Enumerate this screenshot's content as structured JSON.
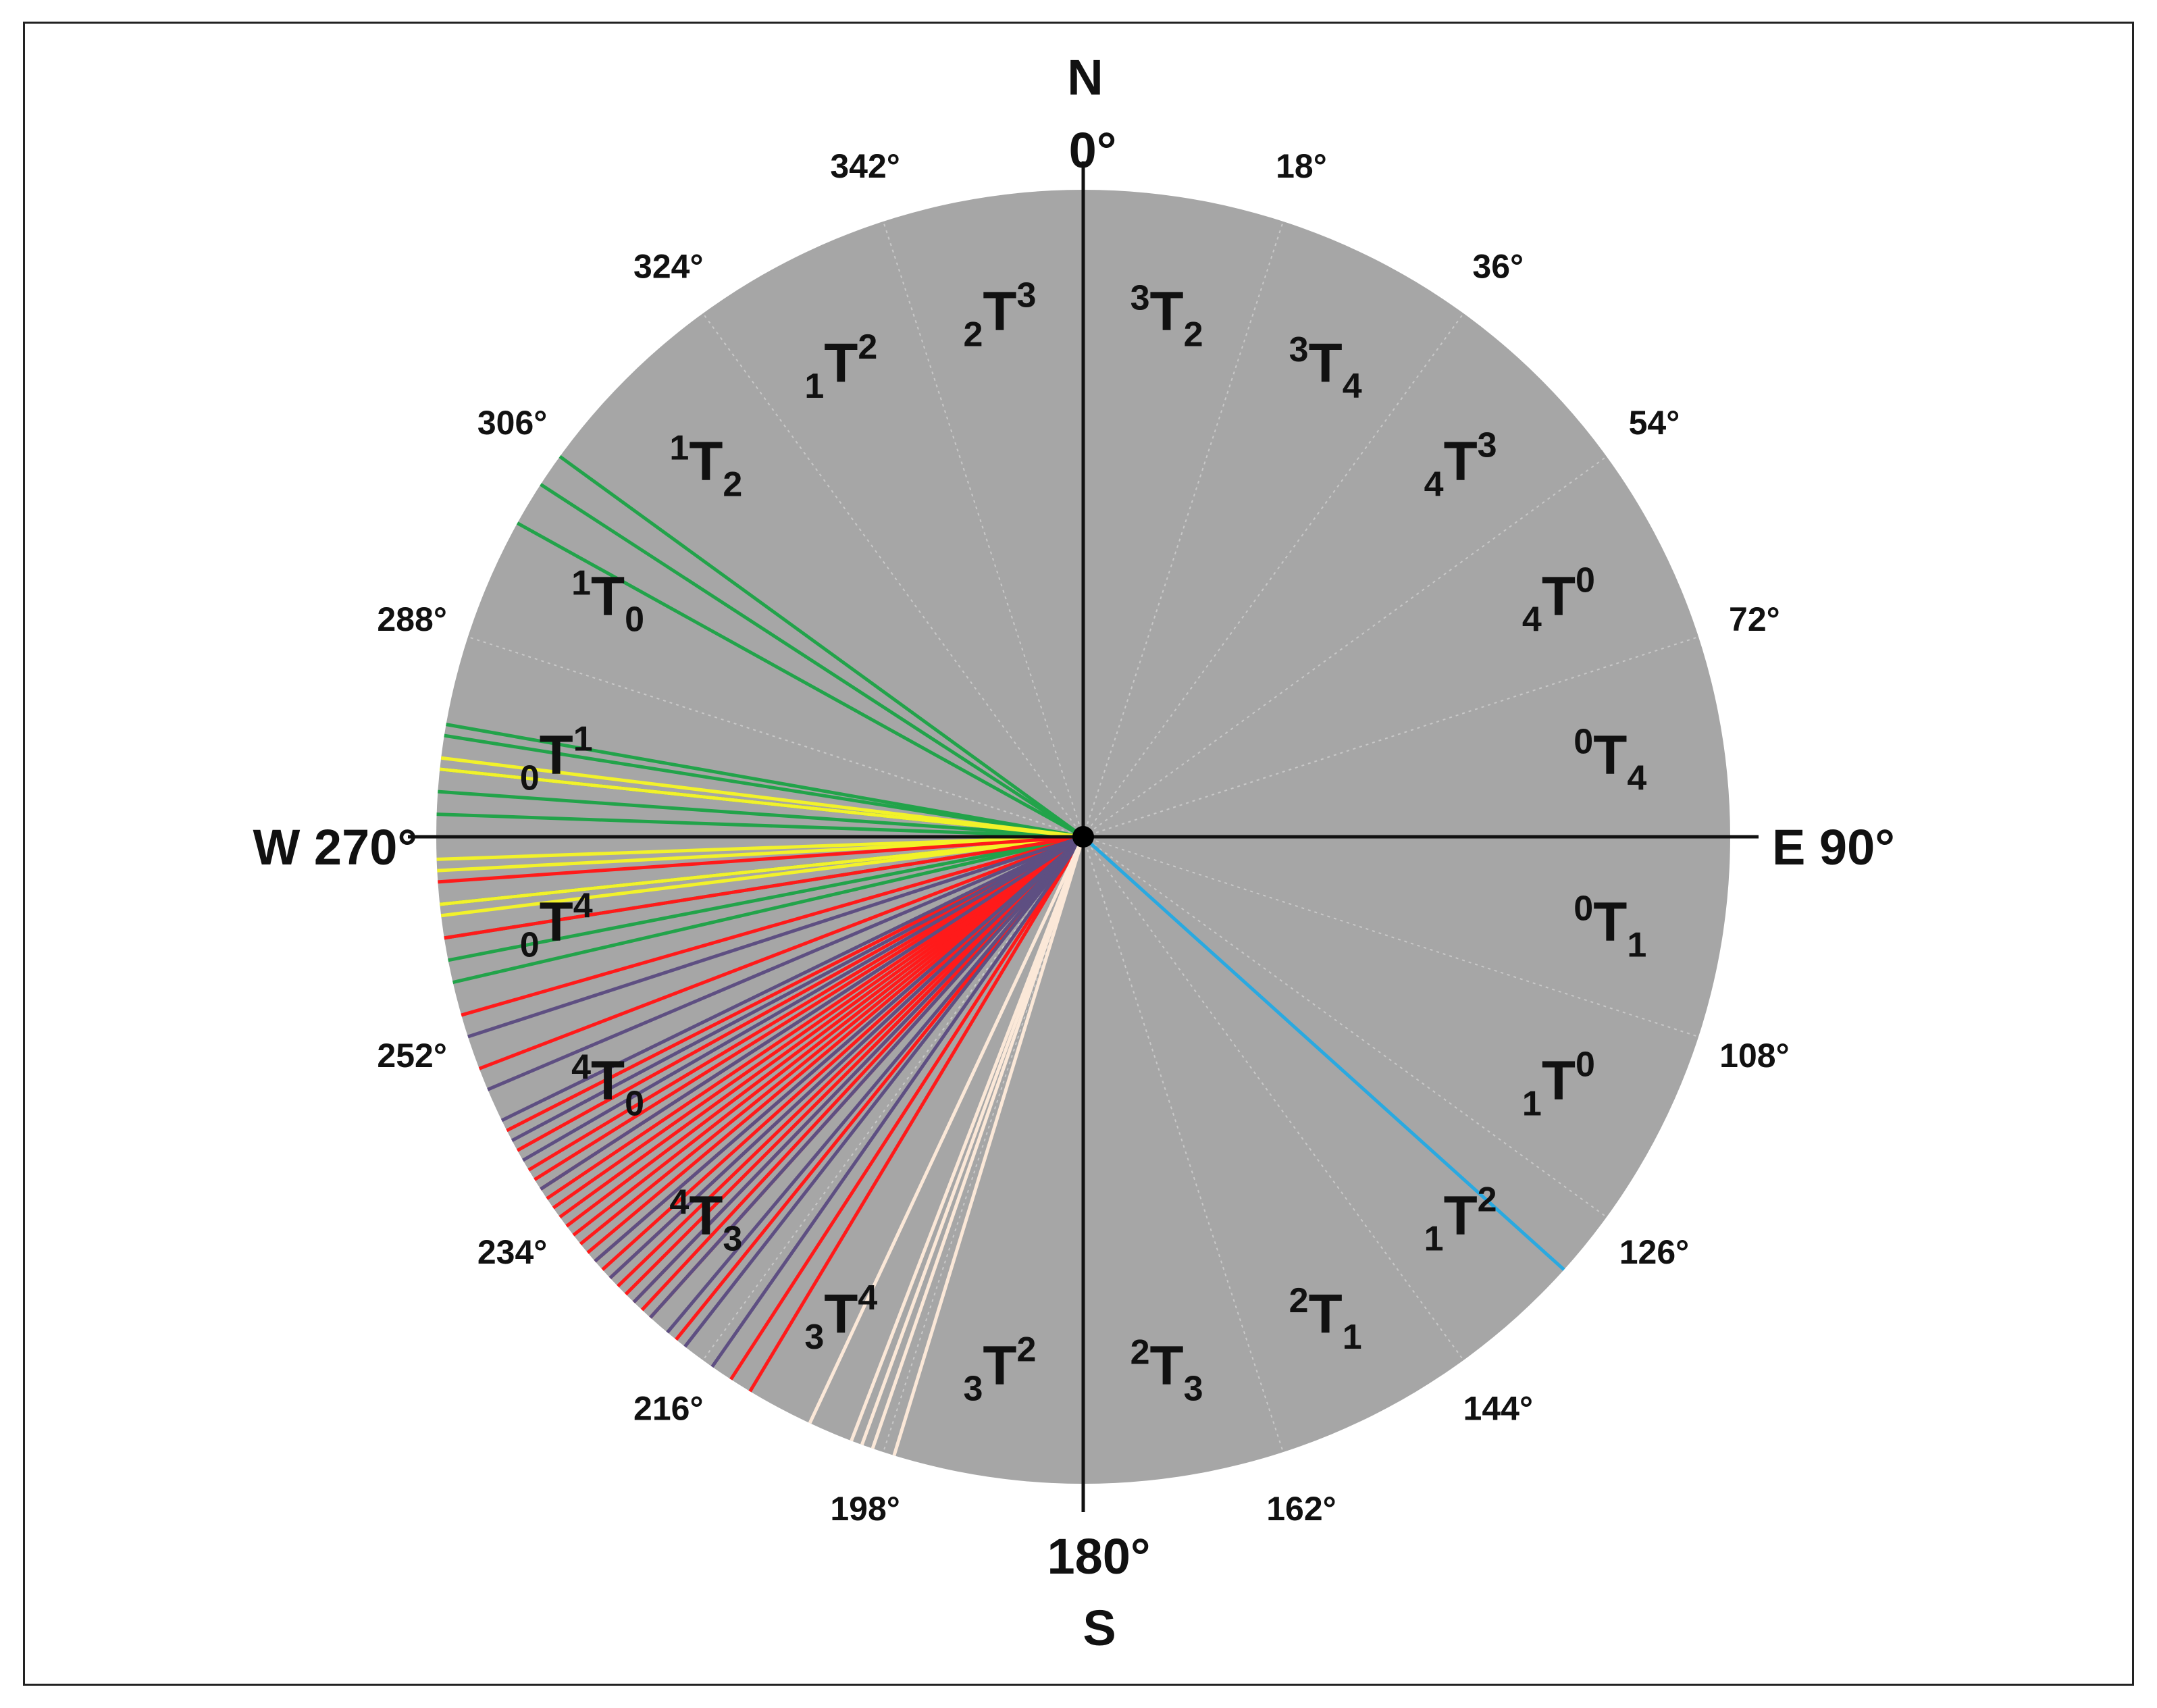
{
  "cardinals": {
    "north_letter": "N",
    "north_degree": "0°",
    "east": "E 90°",
    "south_degree": "180°",
    "south_letter": "S",
    "west": "W 270°"
  },
  "degree_labels": [
    "18°",
    "36°",
    "54°",
    "72°",
    "108°",
    "126°",
    "144°",
    "162°",
    "198°",
    "216°",
    "234°",
    "252°",
    "288°",
    "306°",
    "324°",
    "342°"
  ],
  "sectors": [
    {
      "lo": "",
      "t": "T",
      "up": "3",
      "dn": "2",
      "mid_deg": 9
    },
    {
      "lo": "",
      "t": "T",
      "up": "3",
      "dn": "4",
      "mid_deg": 27
    },
    {
      "lo": "4",
      "t": "T",
      "up": "3",
      "dn": "",
      "mid_deg": 45
    },
    {
      "lo": "4",
      "t": "T",
      "up": "0",
      "dn": "",
      "mid_deg": 63
    },
    {
      "lo": "",
      "t": "T",
      "up": "0",
      "dn": "4",
      "mid_deg": 81
    },
    {
      "lo": "",
      "t": "T",
      "up": "0",
      "dn": "1",
      "mid_deg": 99
    },
    {
      "lo": "1",
      "t": "T",
      "up": "0",
      "dn": "",
      "mid_deg": 117
    },
    {
      "lo": "1",
      "t": "T",
      "up": "2",
      "dn": "",
      "mid_deg": 135
    },
    {
      "lo": "",
      "t": "T",
      "up": "2",
      "dn": "1",
      "mid_deg": 153
    },
    {
      "lo": "",
      "t": "T",
      "up": "2",
      "dn": "3",
      "mid_deg": 171
    },
    {
      "lo": "3",
      "t": "T",
      "up": "2",
      "dn": "",
      "mid_deg": 189
    },
    {
      "lo": "3",
      "t": "T",
      "up": "4",
      "dn": "",
      "mid_deg": 207
    },
    {
      "lo": "",
      "t": "T",
      "up": "4",
      "dn": "3",
      "mid_deg": 225
    },
    {
      "lo": "",
      "t": "T",
      "up": "4",
      "dn": "0",
      "mid_deg": 243
    },
    {
      "lo": "0",
      "t": "T",
      "up": "4",
      "dn": "",
      "mid_deg": 261
    },
    {
      "lo": "0",
      "t": "T",
      "up": "1",
      "dn": "",
      "mid_deg": 279
    },
    {
      "lo": "",
      "t": "T",
      "up": "1",
      "dn": "0",
      "mid_deg": 297
    },
    {
      "lo": "",
      "t": "T",
      "up": "1",
      "dn": "2",
      "mid_deg": 315
    },
    {
      "lo": "1",
      "t": "T",
      "up": "2",
      "dn": "",
      "mid_deg": 333
    },
    {
      "lo": "2",
      "t": "T",
      "up": "3",
      "dn": "",
      "mid_deg": 351
    }
  ],
  "colors": {
    "disc": "#a6a6a6",
    "green": "#22a34a",
    "yellow": "#f2f22a",
    "red": "#ff1a1a",
    "purple": "#5e4f82",
    "beige": "#fbe8d8",
    "blue": "#2aa9e0",
    "axis": "#111111"
  },
  "chart_data": {
    "type": "radial-lines",
    "sector_width_deg": 18,
    "series": [
      {
        "color": "green",
        "bearings_deg": [
          299,
          303,
          306,
          280,
          279,
          276,
          274,
          272,
          264,
          261,
          259,
          257
        ]
      },
      {
        "color": "yellow",
        "bearings_deg": [
          276,
          277,
          268,
          267,
          264,
          263
        ]
      },
      {
        "color": "red",
        "bearings_deg": [
          266,
          261,
          254,
          249,
          243,
          241,
          239,
          238,
          237,
          236,
          235,
          234,
          233,
          232,
          231,
          230,
          229,
          228,
          227,
          226,
          225,
          224,
          223,
          222,
          219,
          213,
          211
        ]
      },
      {
        "color": "purple",
        "bearings_deg": [
          252,
          247,
          244,
          242,
          240,
          237,
          229,
          227,
          224,
          222,
          220,
          218,
          215
        ]
      },
      {
        "color": "beige",
        "bearings_deg": [
          205,
          201,
          200,
          199,
          197
        ]
      },
      {
        "color": "blue",
        "bearings_deg": [
          132
        ]
      }
    ]
  }
}
